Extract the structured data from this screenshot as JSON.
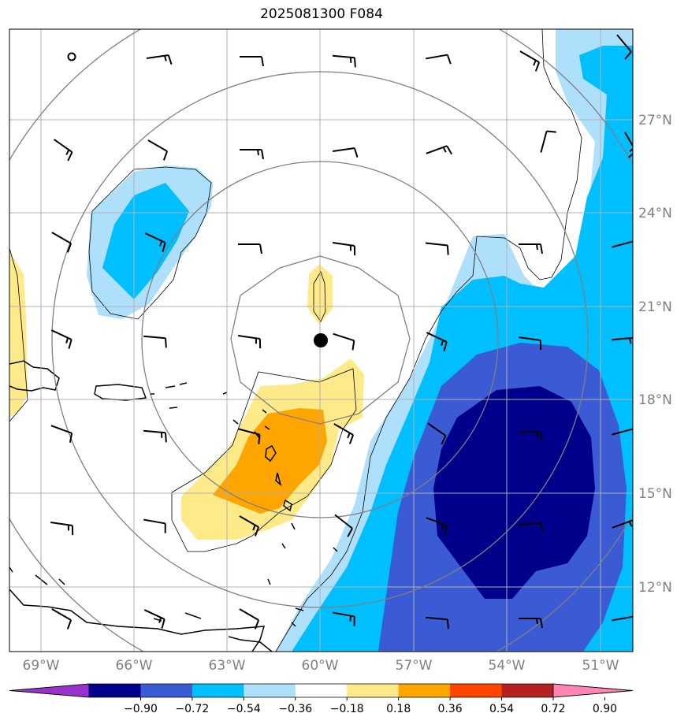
{
  "title": "2025081300 F084",
  "map": {
    "lon_labels": [
      "69°W",
      "66°W",
      "63°W",
      "60°W",
      "57°W",
      "54°W",
      "51°W"
    ],
    "lat_labels": [
      "27°N",
      "24°N",
      "21°N",
      "18°N",
      "15°N",
      "12°N"
    ],
    "center_marker": {
      "lon": -60,
      "lat": 19.9
    }
  },
  "colorbar": {
    "levels": [
      "−0.90",
      "−0.72",
      "−0.54",
      "−0.36",
      "−0.18",
      "0.18",
      "0.36",
      "0.54",
      "0.72",
      "0.90"
    ],
    "colors": [
      "#9932cc",
      "#00008b",
      "#3a5bd3",
      "#00bfff",
      "#afe0fb",
      "#ffffff",
      "#ffea8a",
      "#ffa500",
      "#ff4500",
      "#b22222",
      "#ff85b5"
    ]
  },
  "colors": {
    "grid": "#b0b0b0",
    "range_rings": "#808080",
    "coast": "#000000"
  }
}
